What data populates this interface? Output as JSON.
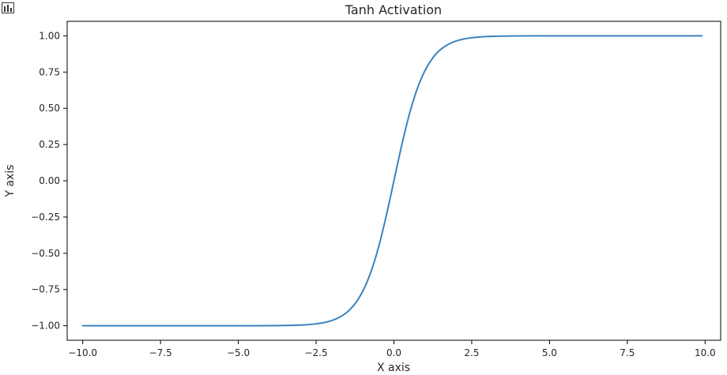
{
  "chart_data": {
    "type": "line",
    "title": "Tanh Activation",
    "xlabel": "X axis",
    "ylabel": "Y axis",
    "xlim": [
      -10.5,
      10.5
    ],
    "ylim": [
      -1.1,
      1.1
    ],
    "xticks": [
      -10.0,
      -7.5,
      -5.0,
      -2.5,
      0.0,
      2.5,
      5.0,
      7.5,
      10.0
    ],
    "xtick_labels": [
      "−10.0",
      "−7.5",
      "−5.0",
      "−2.5",
      "0.0",
      "2.5",
      "5.0",
      "7.5",
      "10.0"
    ],
    "yticks": [
      1.0,
      0.75,
      0.5,
      0.25,
      0.0,
      -0.25,
      -0.5,
      -0.75,
      -1.0
    ],
    "ytick_labels": [
      "1.00",
      "0.75",
      "0.50",
      "0.25",
      "0.00",
      "−0.25",
      "−0.50",
      "−0.75",
      "−1.00"
    ],
    "grid": false,
    "series": [
      {
        "color": "#3b83c0",
        "x": [
          -10.0,
          -9.0,
          -8.0,
          -7.0,
          -6.0,
          -5.0,
          -4.0,
          -3.5,
          -3.0,
          -2.75,
          -2.5,
          -2.25,
          -2.0,
          -1.75,
          -1.5,
          -1.25,
          -1.0,
          -0.75,
          -0.5,
          -0.25,
          0.0,
          0.25,
          0.5,
          0.75,
          1.0,
          1.25,
          1.5,
          1.75,
          2.0,
          2.25,
          2.5,
          2.75,
          3.0,
          3.5,
          4.0,
          5.0,
          6.0,
          7.0,
          8.0,
          9.0,
          9.9
        ],
        "y": [
          -1.0,
          -1.0,
          -1.0,
          -1.0,
          -1.0,
          -0.9999,
          -0.9993,
          -0.9982,
          -0.9951,
          -0.9918,
          -0.9866,
          -0.978,
          -0.964,
          -0.9414,
          -0.9051,
          -0.8483,
          -0.7616,
          -0.6351,
          -0.4621,
          -0.2449,
          0.0,
          0.2449,
          0.4621,
          0.6351,
          0.7616,
          0.8483,
          0.9051,
          0.9414,
          0.964,
          0.978,
          0.9866,
          0.9918,
          0.9951,
          0.9982,
          0.9993,
          0.9999,
          1.0,
          1.0,
          1.0,
          1.0,
          1.0
        ]
      }
    ]
  }
}
